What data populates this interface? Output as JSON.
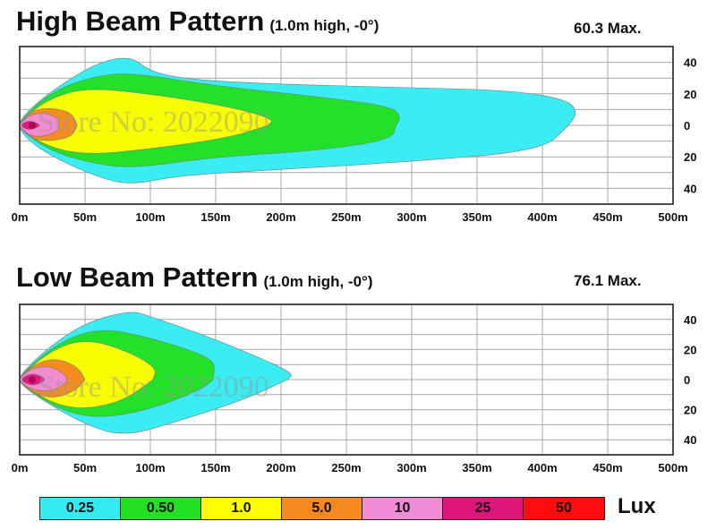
{
  "charts": [
    {
      "title": "High Beam Pattern",
      "subtitle": "(1.0m high, -0°)",
      "max_label": "60.3 Max.",
      "watermark": "Store No: 2022090"
    },
    {
      "title": "Low Beam Pattern",
      "subtitle": "(1.0m high, -0°)",
      "max_label": "76.1 Max.",
      "watermark": "Store No: 2022090"
    }
  ],
  "legend": {
    "unit": "Lux",
    "levels": [
      {
        "label": "0.25",
        "color": "#33ecf2"
      },
      {
        "label": "0.50",
        "color": "#22e022"
      },
      {
        "label": "1.0",
        "color": "#ffff00"
      },
      {
        "label": "5.0",
        "color": "#f5891f"
      },
      {
        "label": "10",
        "color": "#f28bd6"
      },
      {
        "label": "25",
        "color": "#e0157a"
      },
      {
        "label": "50",
        "color": "#ff0c0c"
      }
    ]
  },
  "chart_data": [
    {
      "type": "area",
      "title": "High Beam Pattern",
      "subtitle": "(1.0m high, -0°)",
      "max_annotation": "60.3 Max.",
      "xlabel": "",
      "ylabel": "",
      "x_unit": "m",
      "xlim": [
        0,
        500
      ],
      "ylim": [
        -50,
        50
      ],
      "x_ticks": [
        "0m",
        "50m",
        "100m",
        "150m",
        "200m",
        "250m",
        "300m",
        "350m",
        "400m",
        "450m",
        "500m"
      ],
      "y_ticks": [
        "40",
        "20",
        "0",
        "20",
        "40"
      ],
      "grid": true,
      "series": [
        {
          "name": "0.25",
          "reach_m": 427,
          "max_halfwidth_m": 44,
          "upper": [
            [
              0,
              3
            ],
            [
              10,
              12
            ],
            [
              30,
              25
            ],
            [
              60,
              40
            ],
            [
              85,
              44
            ],
            [
              100,
              34
            ],
            [
              130,
              29
            ],
            [
              200,
              26
            ],
            [
              300,
              24
            ],
            [
              380,
              22
            ],
            [
              420,
              16
            ],
            [
              427,
              8
            ],
            [
              420,
              0
            ]
          ],
          "lower": [
            [
              0,
              -3
            ],
            [
              10,
              -12
            ],
            [
              30,
              -22
            ],
            [
              60,
              -33
            ],
            [
              85,
              -38
            ],
            [
              120,
              -32
            ],
            [
              200,
              -28
            ],
            [
              300,
              -23
            ],
            [
              400,
              -16
            ],
            [
              420,
              0
            ]
          ]
        },
        {
          "name": "0.50",
          "reach_m": 292,
          "max_halfwidth_m": 35,
          "upper": [
            [
              0,
              3
            ],
            [
              25,
              22
            ],
            [
              60,
              32
            ],
            [
              90,
              33
            ],
            [
              150,
              25
            ],
            [
              230,
              18
            ],
            [
              285,
              12
            ],
            [
              292,
              5
            ],
            [
              288,
              0
            ]
          ],
          "lower": [
            [
              0,
              -3
            ],
            [
              25,
              -17
            ],
            [
              60,
              -25
            ],
            [
              90,
              -27
            ],
            [
              150,
              -20
            ],
            [
              230,
              -16
            ],
            [
              285,
              -9
            ],
            [
              288,
              0
            ]
          ]
        },
        {
          "name": "1.0",
          "reach_m": 195,
          "max_halfwidth_m": 24,
          "upper": [
            [
              0,
              2
            ],
            [
              20,
              16
            ],
            [
              50,
              24
            ],
            [
              100,
              20
            ],
            [
              160,
              12
            ],
            [
              195,
              4
            ],
            [
              190,
              0
            ]
          ],
          "lower": [
            [
              0,
              -2
            ],
            [
              20,
              -13
            ],
            [
              50,
              -19
            ],
            [
              100,
              -15
            ],
            [
              160,
              -8
            ],
            [
              190,
              0
            ]
          ]
        },
        {
          "name": "5.0",
          "reach_m": 44,
          "max_halfwidth_m": 11,
          "upper": [
            [
              0,
              1
            ],
            [
              10,
              10
            ],
            [
              25,
              11
            ],
            [
              40,
              8
            ],
            [
              44,
              0
            ]
          ],
          "lower": [
            [
              0,
              -1
            ],
            [
              10,
              -9
            ],
            [
              25,
              -10
            ],
            [
              40,
              -7
            ],
            [
              44,
              0
            ]
          ]
        },
        {
          "name": "10",
          "reach_m": 30,
          "max_halfwidth_m": 8,
          "upper": [
            [
              0,
              1
            ],
            [
              8,
              7
            ],
            [
              20,
              8
            ],
            [
              30,
              4
            ],
            [
              30,
              0
            ]
          ],
          "lower": [
            [
              0,
              -1
            ],
            [
              8,
              -7
            ],
            [
              20,
              -7
            ],
            [
              30,
              -3
            ],
            [
              30,
              0
            ]
          ]
        },
        {
          "name": "25",
          "reach_m": 16,
          "max_halfwidth_m": 3,
          "upper": [
            [
              0,
              0
            ],
            [
              6,
              3
            ],
            [
              12,
              2
            ],
            [
              16,
              0
            ]
          ],
          "lower": [
            [
              6,
              -3
            ],
            [
              12,
              -2
            ]
          ]
        }
      ]
    },
    {
      "type": "area",
      "title": "Low Beam Pattern",
      "subtitle": "(1.0m high, -0°)",
      "max_annotation": "76.1 Max.",
      "xlabel": "",
      "ylabel": "",
      "x_unit": "m",
      "xlim": [
        0,
        500
      ],
      "ylim": [
        -50,
        50
      ],
      "x_ticks": [
        "0m",
        "50m",
        "100m",
        "150m",
        "200m",
        "250m",
        "300m",
        "350m",
        "400m",
        "450m",
        "500m"
      ],
      "y_ticks": [
        "40",
        "20",
        "0",
        "20",
        "40"
      ],
      "grid": true,
      "series": [
        {
          "name": "0.25",
          "reach_m": 210,
          "max_halfwidth_m": 46,
          "upper": [
            [
              0,
              3
            ],
            [
              20,
              20
            ],
            [
              50,
              38
            ],
            [
              85,
              46
            ],
            [
              100,
              42
            ],
            [
              140,
              30
            ],
            [
              180,
              16
            ],
            [
              210,
              4
            ],
            [
              205,
              0
            ]
          ],
          "lower": [
            [
              0,
              -3
            ],
            [
              20,
              -15
            ],
            [
              50,
              -30
            ],
            [
              80,
              -38
            ],
            [
              120,
              -28
            ],
            [
              170,
              -14
            ],
            [
              205,
              0
            ]
          ]
        },
        {
          "name": "0.50",
          "reach_m": 150,
          "max_halfwidth_m": 34,
          "upper": [
            [
              0,
              3
            ],
            [
              30,
              25
            ],
            [
              60,
              34
            ],
            [
              90,
              30
            ],
            [
              130,
              20
            ],
            [
              150,
              12
            ],
            [
              148,
              0
            ]
          ],
          "lower": [
            [
              0,
              -3
            ],
            [
              30,
              -20
            ],
            [
              60,
              -26
            ],
            [
              100,
              -20
            ],
            [
              140,
              -6
            ],
            [
              148,
              0
            ]
          ]
        },
        {
          "name": "1.0",
          "reach_m": 105,
          "max_halfwidth_m": 27,
          "upper": [
            [
              0,
              2
            ],
            [
              25,
              20
            ],
            [
              50,
              27
            ],
            [
              80,
              20
            ],
            [
              105,
              8
            ],
            [
              102,
              0
            ]
          ],
          "lower": [
            [
              0,
              -2
            ],
            [
              25,
              -16
            ],
            [
              50,
              -20
            ],
            [
              80,
              -14
            ],
            [
              102,
              0
            ]
          ]
        },
        {
          "name": "5.0",
          "reach_m": 50,
          "max_halfwidth_m": 14,
          "upper": [
            [
              0,
              2
            ],
            [
              15,
              12
            ],
            [
              30,
              14
            ],
            [
              45,
              8
            ],
            [
              50,
              0
            ]
          ],
          "lower": [
            [
              0,
              -2
            ],
            [
              15,
              -11
            ],
            [
              30,
              -12
            ],
            [
              45,
              -6
            ],
            [
              50,
              0
            ]
          ]
        },
        {
          "name": "10",
          "reach_m": 36,
          "max_halfwidth_m": 9,
          "upper": [
            [
              0,
              1
            ],
            [
              10,
              8
            ],
            [
              25,
              9
            ],
            [
              36,
              2
            ],
            [
              36,
              0
            ]
          ],
          "lower": [
            [
              0,
              -1
            ],
            [
              10,
              -7
            ],
            [
              25,
              -8
            ],
            [
              36,
              -2
            ],
            [
              36,
              0
            ]
          ]
        },
        {
          "name": "25",
          "reach_m": 20,
          "max_halfwidth_m": 4,
          "upper": [
            [
              0,
              0
            ],
            [
              8,
              4
            ],
            [
              15,
              3
            ],
            [
              20,
              0
            ]
          ],
          "lower": [
            [
              8,
              -4
            ],
            [
              15,
              -3
            ]
          ]
        }
      ]
    }
  ]
}
